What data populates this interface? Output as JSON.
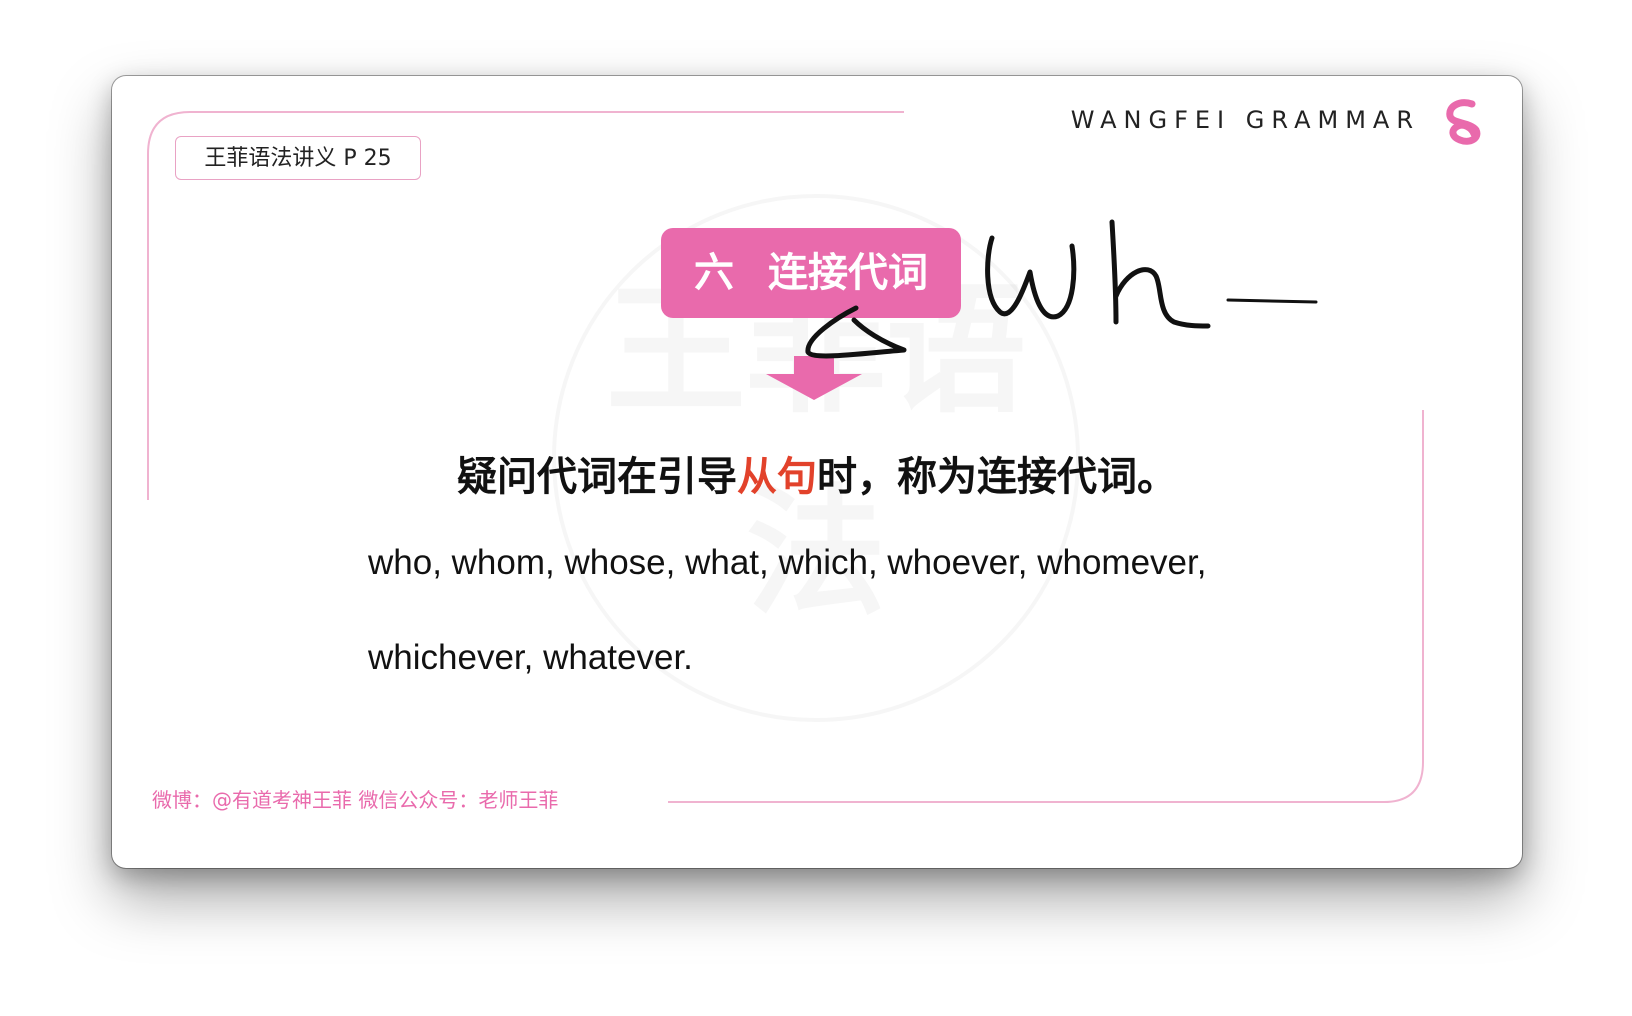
{
  "brand": {
    "name": "WANGFEI GRAMMAR",
    "accent": "#e96aac"
  },
  "page_ref": "王菲语法讲义  P 25",
  "title": "六   连接代词",
  "definition": {
    "before": "疑问代词在引导",
    "highlight": "从句",
    "after": "时，称为连接代词。",
    "highlight_color": "#e2422b"
  },
  "pronouns": {
    "line1": "who, whom, whose, what, which, whoever, whomever,",
    "line2": "whichever, whatever."
  },
  "footer": "微博：@有道考神王菲  微信公众号：老师王菲",
  "handwriting": "Wh —",
  "watermark": "王菲语法"
}
